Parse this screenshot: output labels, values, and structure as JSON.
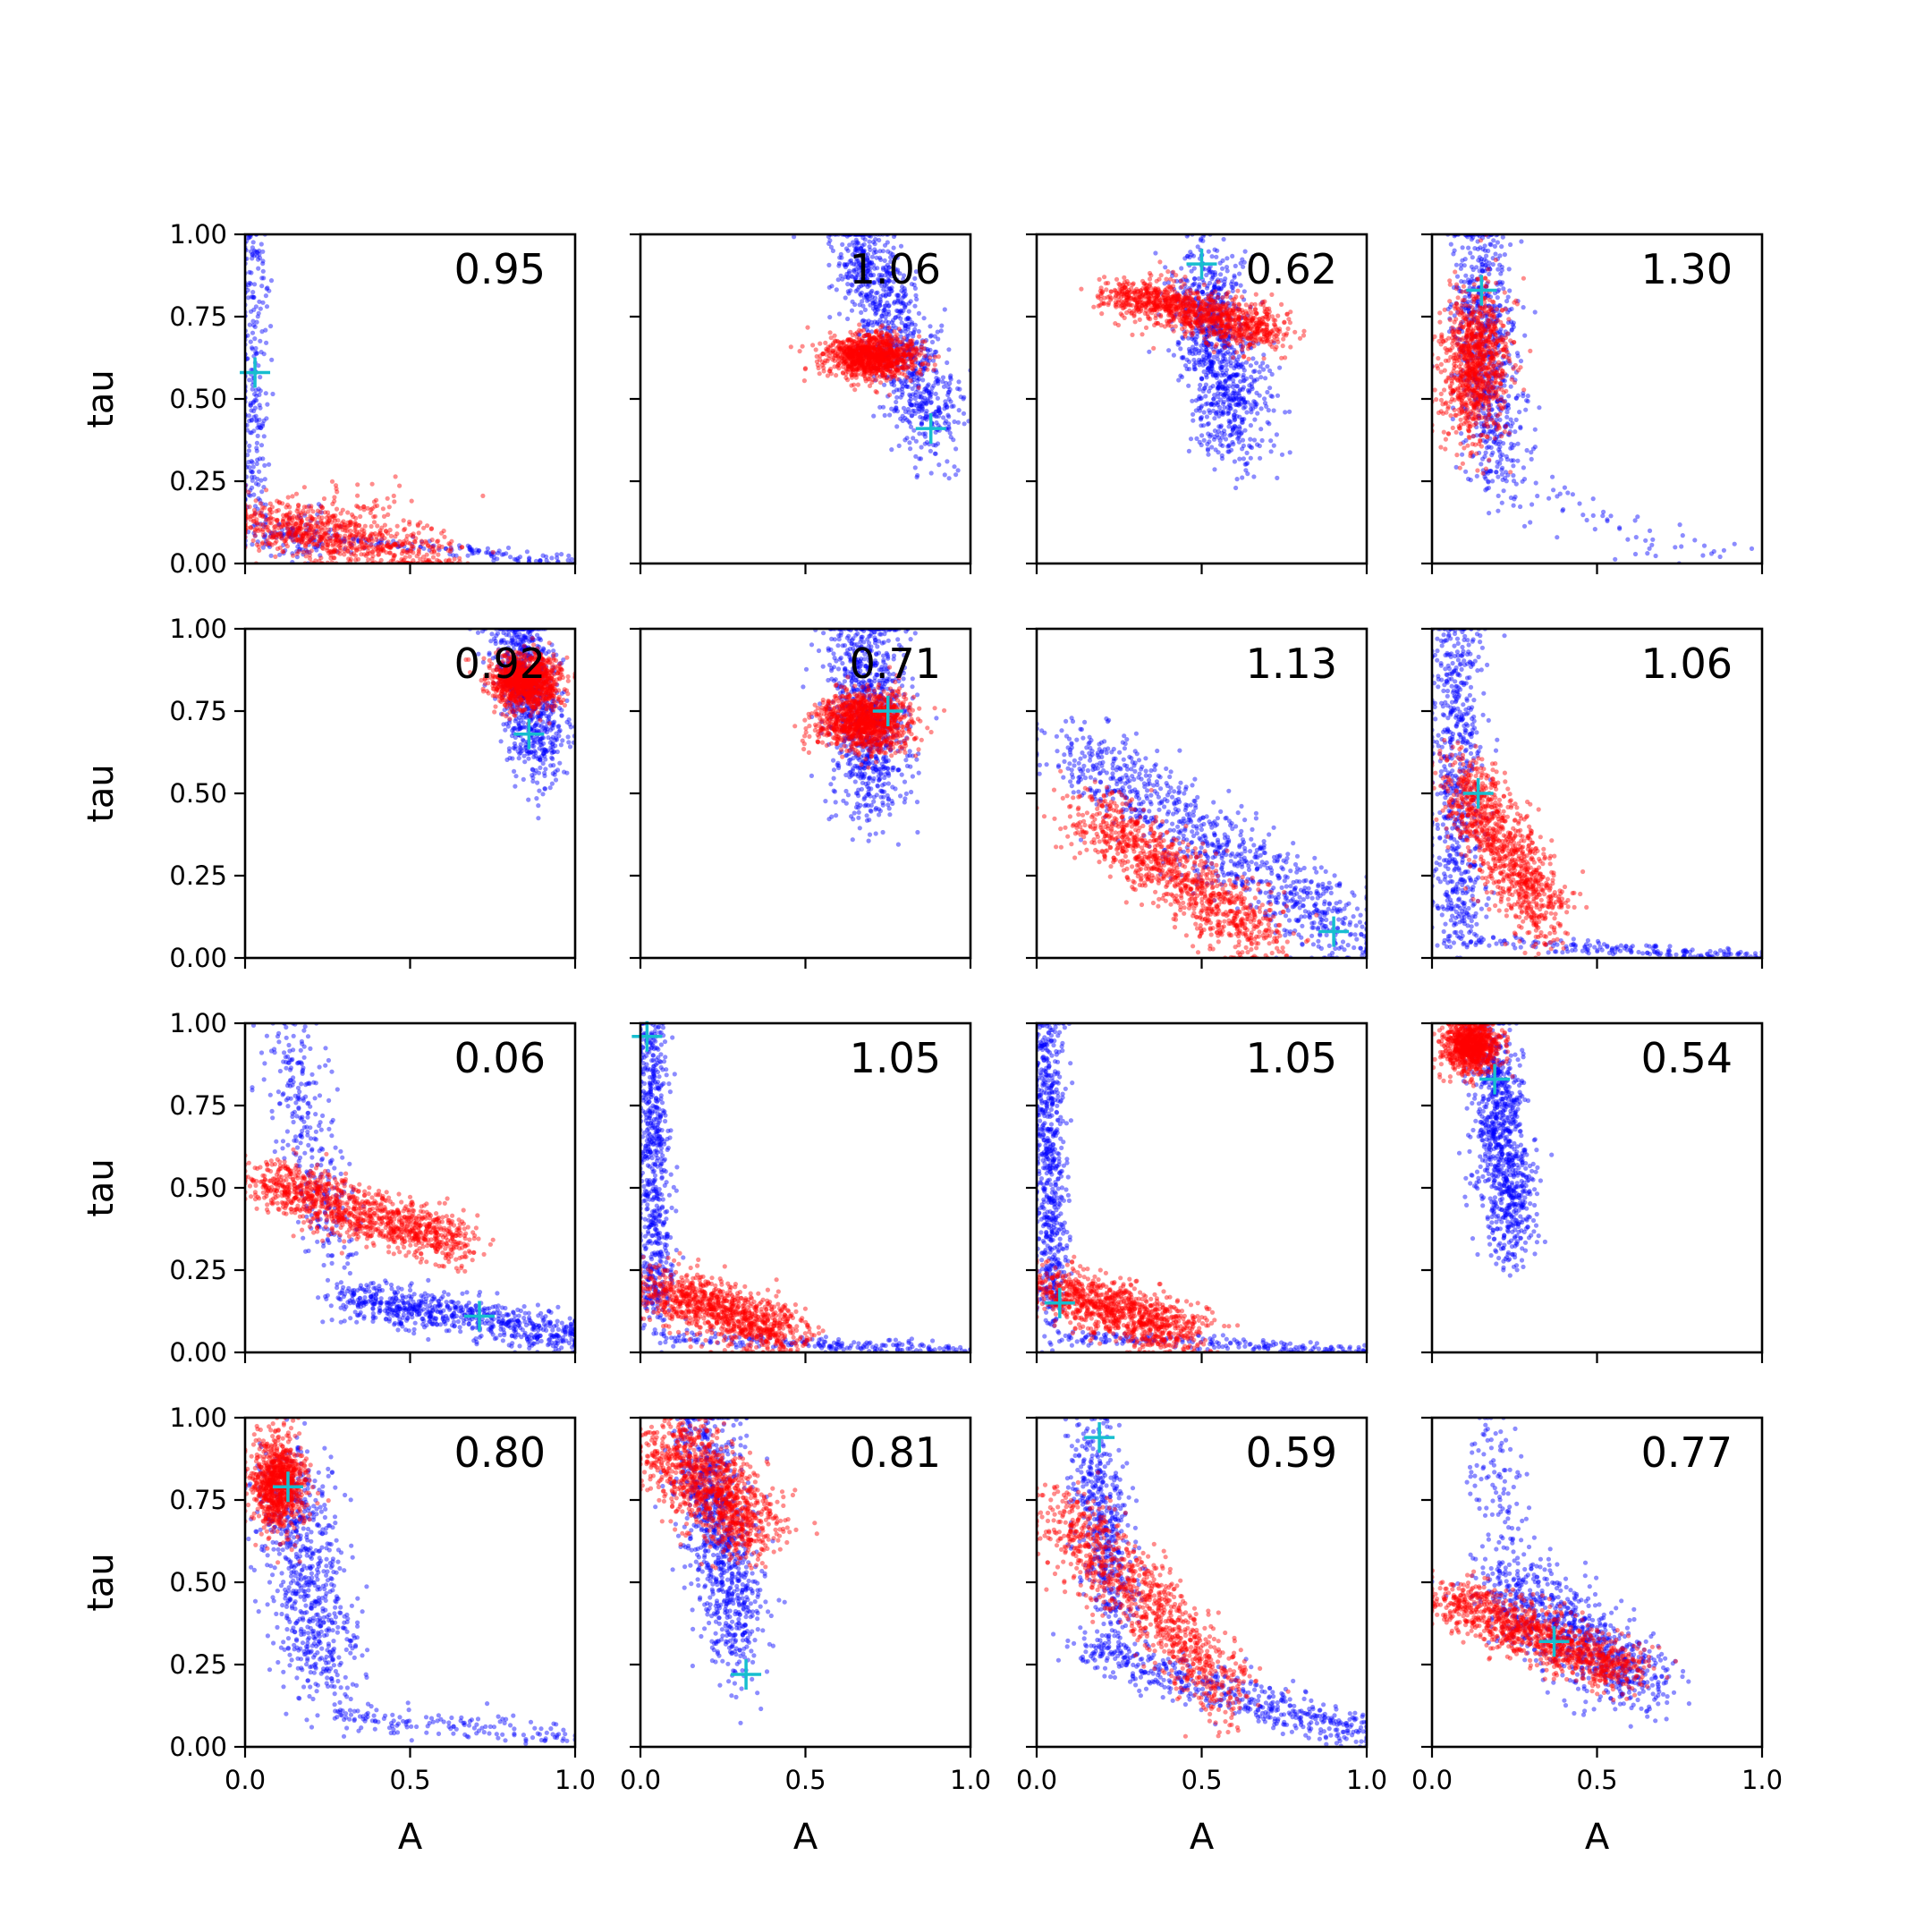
{
  "figure": {
    "x_axis_label": "A",
    "y_axis_label": "tau",
    "x_tick_labels": [
      "0.0",
      "0.5",
      "1.0"
    ],
    "y_tick_labels": [
      "0.00",
      "0.25",
      "0.50",
      "0.75",
      "1.00"
    ]
  },
  "chart_data": {
    "type": "scatter",
    "rows": 4,
    "cols": 4,
    "xlim": [
      0,
      1
    ],
    "ylim": [
      0,
      1
    ],
    "x_ticks": [
      0,
      0.5,
      1.0
    ],
    "y_ticks": [
      0,
      0.25,
      0.5,
      0.75,
      1.0
    ],
    "xlabel": "A",
    "ylabel": "tau",
    "grid": false,
    "colors": {
      "series_a": "#0000ff",
      "series_b": "#ff0000",
      "marker": "#17becf"
    },
    "point_opacity": 0.45,
    "panels": [
      {
        "label": "0.95",
        "marker": [
          0.03,
          0.58
        ],
        "blue": [
          {
            "kind": "line",
            "x0": 0.02,
            "y0": 1.0,
            "x1": 0.03,
            "y1": 0.12,
            "n": 260,
            "sx": 0.025,
            "sy": 0.04
          },
          {
            "kind": "line",
            "x0": 0.05,
            "y0": 0.1,
            "x1": 1.0,
            "y1": 0.005,
            "n": 160,
            "sx": 0.01,
            "sy": 0.01
          },
          {
            "kind": "blob",
            "cx": 0.15,
            "cy": 0.08,
            "sx": 0.08,
            "sy": 0.05,
            "n": 80
          }
        ],
        "red": [
          {
            "kind": "line",
            "x0": 0.02,
            "y0": 0.13,
            "x1": 0.6,
            "y1": 0.02,
            "n": 600,
            "sx": 0.06,
            "sy": 0.04
          },
          {
            "kind": "blob",
            "cx": 0.25,
            "cy": 0.12,
            "sx": 0.15,
            "sy": 0.06,
            "n": 200
          }
        ]
      },
      {
        "label": "1.06",
        "marker": [
          0.88,
          0.41
        ],
        "blue": [
          {
            "kind": "line",
            "x0": 0.65,
            "y0": 1.0,
            "x1": 0.9,
            "y1": 0.4,
            "n": 900,
            "sx": 0.05,
            "sy": 0.07
          }
        ],
        "red": [
          {
            "kind": "blob",
            "cx": 0.7,
            "cy": 0.63,
            "sx": 0.07,
            "sy": 0.035,
            "n": 1100
          }
        ]
      },
      {
        "label": "0.62",
        "marker": [
          0.5,
          0.91
        ],
        "blue": [
          {
            "kind": "line",
            "x0": 0.5,
            "y0": 0.88,
            "x1": 0.6,
            "y1": 0.4,
            "n": 900,
            "sx": 0.06,
            "sy": 0.09
          }
        ],
        "red": [
          {
            "kind": "line",
            "x0": 0.25,
            "y0": 0.82,
            "x1": 0.72,
            "y1": 0.7,
            "n": 1100,
            "sx": 0.05,
            "sy": 0.035
          }
        ]
      },
      {
        "label": "1.30",
        "marker": [
          0.15,
          0.83
        ],
        "blue": [
          {
            "kind": "line",
            "x0": 0.13,
            "y0": 1.0,
            "x1": 0.2,
            "y1": 0.3,
            "n": 700,
            "sx": 0.05,
            "sy": 0.08
          },
          {
            "kind": "line",
            "x0": 0.2,
            "y0": 0.25,
            "x1": 0.9,
            "y1": 0.0,
            "n": 70,
            "sx": 0.05,
            "sy": 0.04
          }
        ],
        "red": [
          {
            "kind": "blob",
            "cx": 0.13,
            "cy": 0.6,
            "sx": 0.05,
            "sy": 0.12,
            "n": 950
          }
        ]
      },
      {
        "label": "0.92",
        "marker": [
          0.86,
          0.68
        ],
        "blue": [
          {
            "kind": "line",
            "x0": 0.82,
            "y0": 1.0,
            "x1": 0.9,
            "y1": 0.6,
            "n": 800,
            "sx": 0.045,
            "sy": 0.07
          }
        ],
        "red": [
          {
            "kind": "blob",
            "cx": 0.85,
            "cy": 0.84,
            "sx": 0.05,
            "sy": 0.04,
            "n": 1100
          }
        ]
      },
      {
        "label": "0.71",
        "marker": [
          0.75,
          0.75
        ],
        "blue": [
          {
            "kind": "line",
            "x0": 0.68,
            "y0": 1.0,
            "x1": 0.7,
            "y1": 0.5,
            "n": 900,
            "sx": 0.06,
            "sy": 0.08
          }
        ],
        "red": [
          {
            "kind": "blob",
            "cx": 0.68,
            "cy": 0.72,
            "sx": 0.07,
            "sy": 0.045,
            "n": 1100
          }
        ]
      },
      {
        "label": "1.13",
        "marker": [
          0.9,
          0.08
        ],
        "blue": [
          {
            "kind": "line",
            "x0": 0.08,
            "y0": 0.65,
            "x1": 1.0,
            "y1": 0.04,
            "n": 900,
            "sx": 0.06,
            "sy": 0.06
          }
        ],
        "red": [
          {
            "kind": "line",
            "x0": 0.15,
            "y0": 0.45,
            "x1": 0.7,
            "y1": 0.05,
            "n": 1000,
            "sx": 0.06,
            "sy": 0.05
          }
        ]
      },
      {
        "label": "1.06",
        "marker": [
          0.14,
          0.5
        ],
        "blue": [
          {
            "kind": "line",
            "x0": 0.07,
            "y0": 1.0,
            "x1": 0.08,
            "y1": 0.05,
            "n": 650,
            "sx": 0.04,
            "sy": 0.05
          },
          {
            "kind": "line",
            "x0": 0.1,
            "y0": 0.05,
            "x1": 1.0,
            "y1": 0.005,
            "n": 180,
            "sx": 0.01,
            "sy": 0.01
          }
        ],
        "red": [
          {
            "kind": "line",
            "x0": 0.08,
            "y0": 0.55,
            "x1": 0.35,
            "y1": 0.12,
            "n": 1000,
            "sx": 0.05,
            "sy": 0.06
          }
        ]
      },
      {
        "label": "0.06",
        "marker": [
          0.71,
          0.11
        ],
        "blue": [
          {
            "kind": "line",
            "x0": 0.12,
            "y0": 0.95,
            "x1": 0.28,
            "y1": 0.3,
            "n": 300,
            "sx": 0.05,
            "sy": 0.08
          },
          {
            "kind": "line",
            "x0": 0.3,
            "y0": 0.17,
            "x1": 1.0,
            "y1": 0.05,
            "n": 700,
            "sx": 0.05,
            "sy": 0.03
          }
        ],
        "red": [
          {
            "kind": "line",
            "x0": 0.05,
            "y0": 0.52,
            "x1": 0.65,
            "y1": 0.33,
            "n": 1100,
            "sx": 0.05,
            "sy": 0.04
          }
        ]
      },
      {
        "label": "1.05",
        "marker": [
          0.02,
          0.96
        ],
        "blue": [
          {
            "kind": "line",
            "x0": 0.03,
            "y0": 1.0,
            "x1": 0.05,
            "y1": 0.1,
            "n": 650,
            "sx": 0.025,
            "sy": 0.05
          },
          {
            "kind": "line",
            "x0": 0.05,
            "y0": 0.05,
            "x1": 1.0,
            "y1": 0.005,
            "n": 200,
            "sx": 0.01,
            "sy": 0.01
          }
        ],
        "red": [
          {
            "kind": "line",
            "x0": 0.05,
            "y0": 0.2,
            "x1": 0.45,
            "y1": 0.05,
            "n": 1000,
            "sx": 0.06,
            "sy": 0.04
          }
        ]
      },
      {
        "label": "1.05",
        "marker": [
          0.07,
          0.15
        ],
        "blue": [
          {
            "kind": "line",
            "x0": 0.03,
            "y0": 1.0,
            "x1": 0.05,
            "y1": 0.1,
            "n": 650,
            "sx": 0.025,
            "sy": 0.05
          },
          {
            "kind": "line",
            "x0": 0.05,
            "y0": 0.05,
            "x1": 1.0,
            "y1": 0.005,
            "n": 200,
            "sx": 0.01,
            "sy": 0.01
          }
        ],
        "red": [
          {
            "kind": "line",
            "x0": 0.05,
            "y0": 0.2,
            "x1": 0.45,
            "y1": 0.05,
            "n": 1000,
            "sx": 0.06,
            "sy": 0.04
          }
        ]
      },
      {
        "label": "0.54",
        "marker": [
          0.19,
          0.83
        ],
        "blue": [
          {
            "kind": "line",
            "x0": 0.18,
            "y0": 0.9,
            "x1": 0.25,
            "y1": 0.35,
            "n": 900,
            "sx": 0.04,
            "sy": 0.09
          }
        ],
        "red": [
          {
            "kind": "blob",
            "cx": 0.12,
            "cy": 0.93,
            "sx": 0.04,
            "sy": 0.04,
            "n": 900
          }
        ]
      },
      {
        "label": "0.80",
        "marker": [
          0.13,
          0.79
        ],
        "blue": [
          {
            "kind": "line",
            "x0": 0.12,
            "y0": 0.85,
            "x1": 0.25,
            "y1": 0.2,
            "n": 700,
            "sx": 0.06,
            "sy": 0.08
          },
          {
            "kind": "line",
            "x0": 0.25,
            "y0": 0.1,
            "x1": 1.0,
            "y1": 0.03,
            "n": 150,
            "sx": 0.04,
            "sy": 0.02
          }
        ],
        "red": [
          {
            "kind": "blob",
            "cx": 0.1,
            "cy": 0.8,
            "sx": 0.04,
            "sy": 0.07,
            "n": 900
          }
        ]
      },
      {
        "label": "0.81",
        "marker": [
          0.32,
          0.22
        ],
        "blue": [
          {
            "kind": "line",
            "x0": 0.18,
            "y0": 0.95,
            "x1": 0.3,
            "y1": 0.3,
            "n": 900,
            "sx": 0.05,
            "sy": 0.09
          }
        ],
        "red": [
          {
            "kind": "line",
            "x0": 0.08,
            "y0": 0.92,
            "x1": 0.35,
            "y1": 0.65,
            "n": 1100,
            "sx": 0.06,
            "sy": 0.06
          }
        ]
      },
      {
        "label": "0.59",
        "marker": [
          0.19,
          0.94
        ],
        "blue": [
          {
            "kind": "line",
            "x0": 0.16,
            "y0": 0.92,
            "x1": 0.25,
            "y1": 0.4,
            "n": 500,
            "sx": 0.04,
            "sy": 0.08
          },
          {
            "kind": "line",
            "x0": 0.15,
            "y0": 0.3,
            "x1": 1.0,
            "y1": 0.03,
            "n": 500,
            "sx": 0.05,
            "sy": 0.03
          }
        ],
        "red": [
          {
            "kind": "line",
            "x0": 0.06,
            "y0": 0.72,
            "x1": 0.6,
            "y1": 0.15,
            "n": 1000,
            "sx": 0.05,
            "sy": 0.06
          }
        ]
      },
      {
        "label": "0.77",
        "marker": [
          0.37,
          0.32
        ],
        "blue": [
          {
            "kind": "line",
            "x0": 0.2,
            "y0": 0.5,
            "x1": 0.65,
            "y1": 0.18,
            "n": 800,
            "sx": 0.07,
            "sy": 0.06
          },
          {
            "kind": "line",
            "x0": 0.15,
            "y0": 0.95,
            "x1": 0.25,
            "y1": 0.55,
            "n": 120,
            "sx": 0.04,
            "sy": 0.08
          }
        ],
        "red": [
          {
            "kind": "line",
            "x0": 0.05,
            "y0": 0.45,
            "x1": 0.6,
            "y1": 0.22,
            "n": 1100,
            "sx": 0.05,
            "sy": 0.04
          }
        ]
      }
    ]
  }
}
